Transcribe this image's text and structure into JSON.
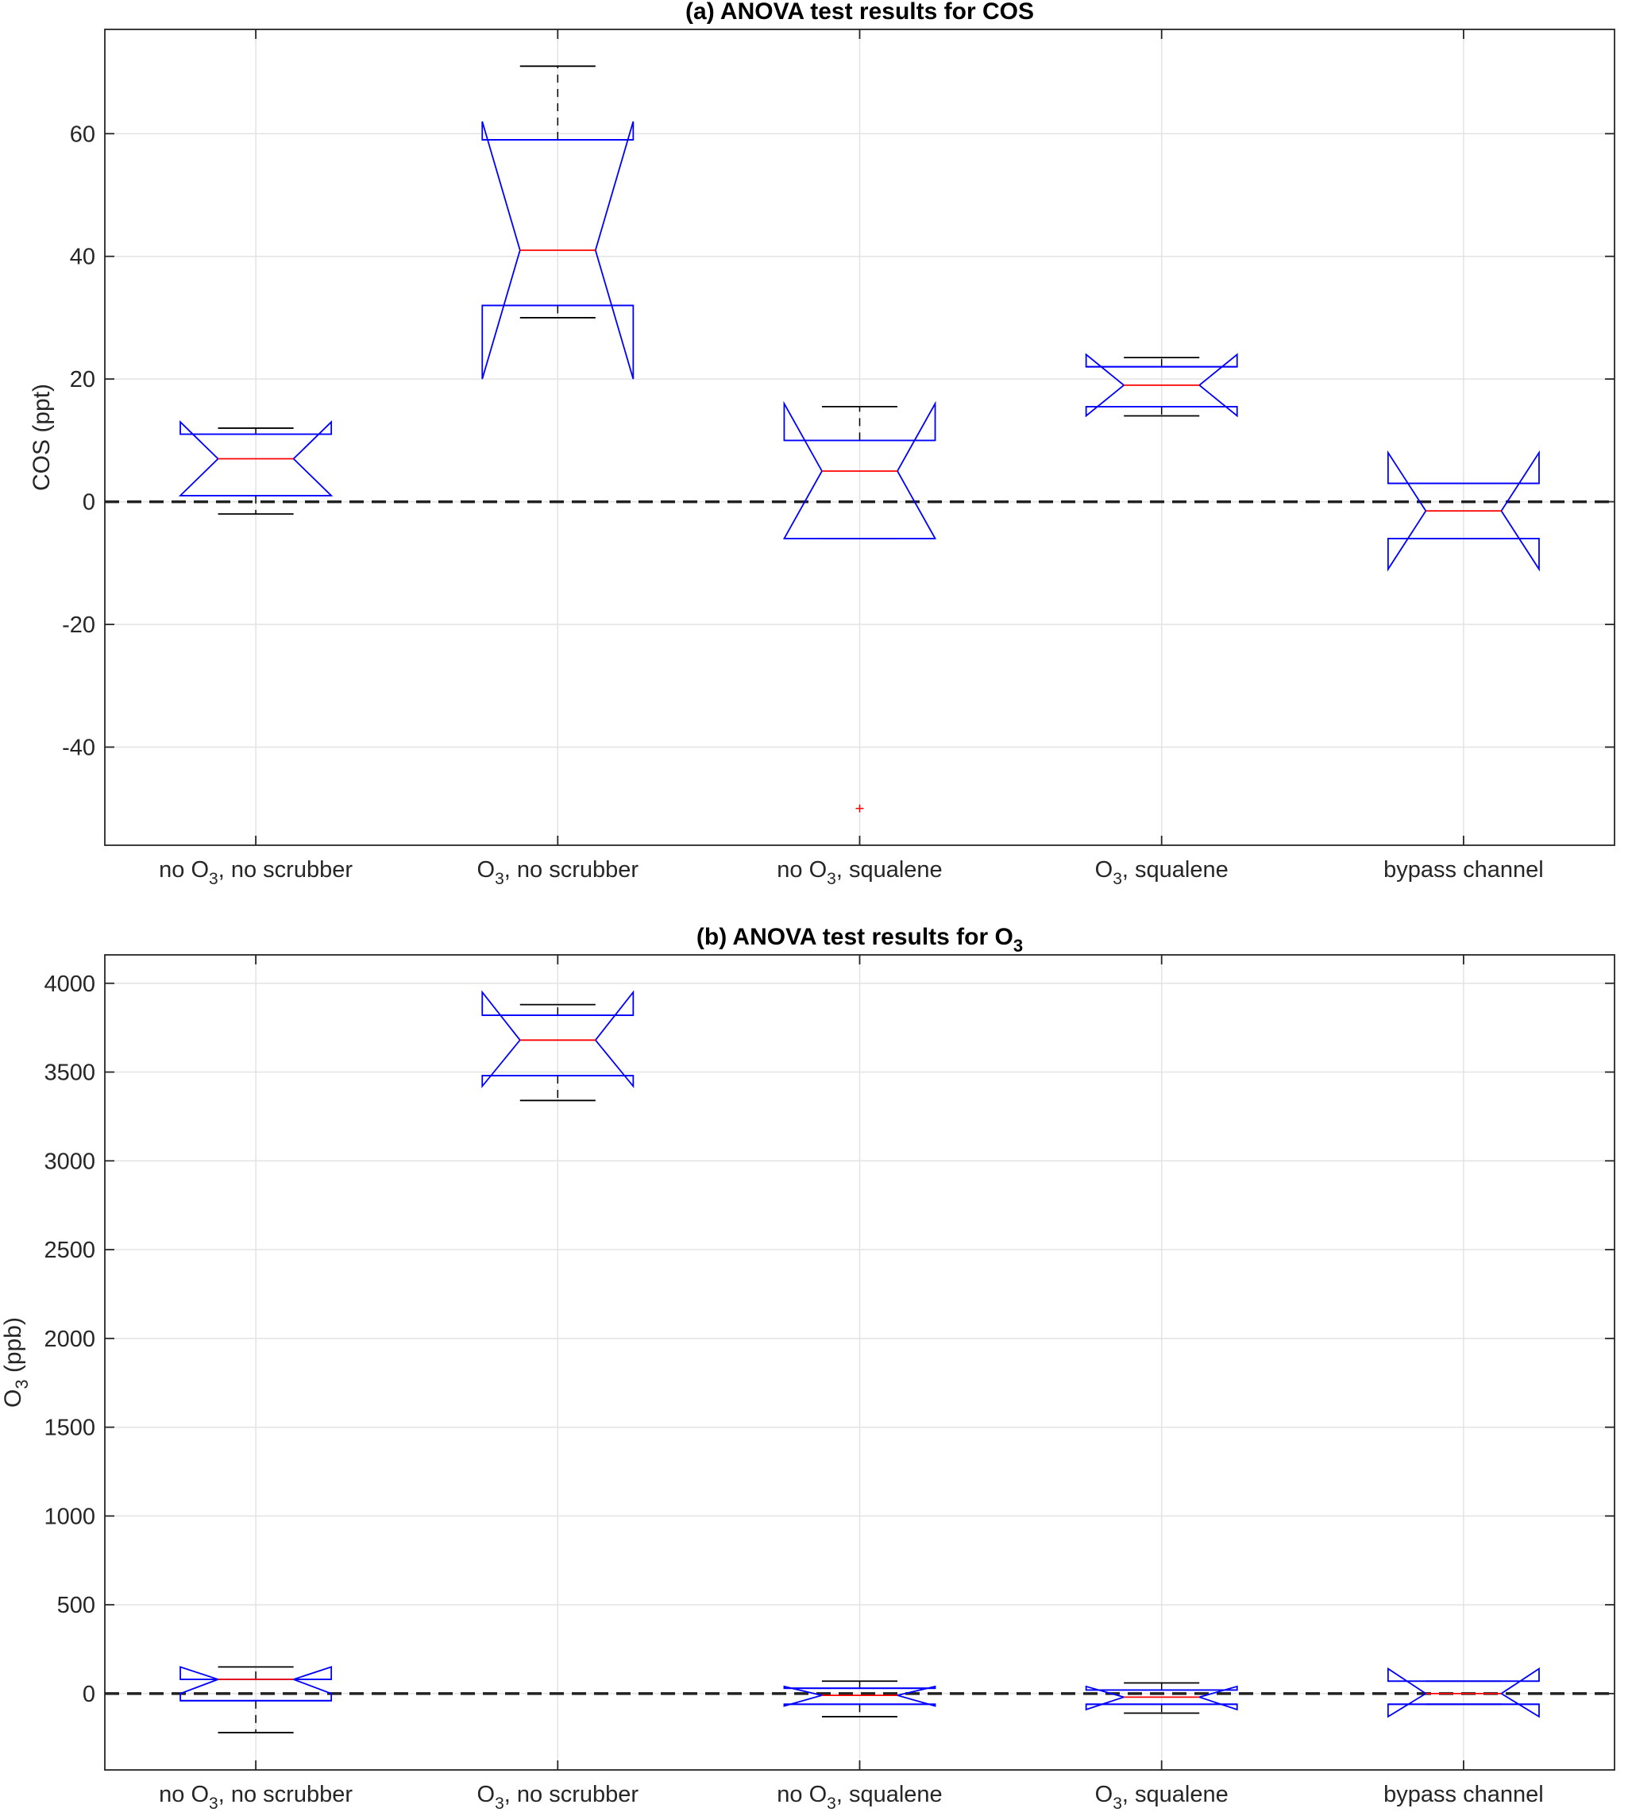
{
  "chart_data": [
    {
      "type": "boxplot",
      "title": "(a) ANOVA test results for COS",
      "ylabel": "COS (ppt)",
      "ylim": [
        -56,
        77
      ],
      "yticks": [
        -40,
        -20,
        0,
        20,
        40,
        60
      ],
      "grid": true,
      "categories": [
        {
          "pre": "no O",
          "sub": "3",
          "post": ", no scrubber"
        },
        {
          "pre": "O",
          "sub": "3",
          "post": ", no scrubber"
        },
        {
          "pre": "no O",
          "sub": "3",
          "post": ", squalene"
        },
        {
          "pre": "O",
          "sub": "3",
          "post": ", squalene"
        },
        {
          "pre": "bypass channel",
          "sub": "",
          "post": ""
        }
      ],
      "boxes": [
        {
          "whisker_low": -2,
          "q1": 1,
          "median": 7,
          "q3": 11,
          "whisker_high": 12,
          "notch_low": 1,
          "notch_high": 13,
          "outliers": []
        },
        {
          "whisker_low": 30,
          "q1": 32,
          "median": 41,
          "q3": 59,
          "whisker_high": 71,
          "notch_low": 20,
          "notch_high": 62,
          "outliers": []
        },
        {
          "whisker_low": -6,
          "q1": -6,
          "median": 5,
          "q3": 10,
          "whisker_high": 15.5,
          "notch_low": -6,
          "notch_high": 16,
          "outliers": [
            -50
          ]
        },
        {
          "whisker_low": 14,
          "q1": 15.5,
          "median": 19,
          "q3": 22,
          "whisker_high": 23.5,
          "notch_low": 14,
          "notch_high": 24,
          "outliers": []
        },
        {
          "whisker_low": -6,
          "q1": -6,
          "median": -1.5,
          "q3": 3,
          "whisker_high": 3,
          "notch_low": -11,
          "notch_high": 8,
          "outliers": []
        }
      ],
      "reference_line": 0
    },
    {
      "type": "boxplot",
      "title_pre": "(b) ANOVA test results for O",
      "title_sub": "3",
      "ylabel_pre": "O",
      "ylabel_sub": "3",
      "ylabel_post": " (ppb)",
      "ylim": [
        -430,
        4160
      ],
      "yticks": [
        0,
        500,
        1000,
        1500,
        2000,
        2500,
        3000,
        3500,
        4000
      ],
      "grid": true,
      "categories": [
        {
          "pre": "no O",
          "sub": "3",
          "post": ", no scrubber"
        },
        {
          "pre": "O",
          "sub": "3",
          "post": ", no scrubber"
        },
        {
          "pre": "no O",
          "sub": "3",
          "post": ", squalene"
        },
        {
          "pre": "O",
          "sub": "3",
          "post": ", squalene"
        },
        {
          "pre": "bypass channel",
          "sub": "",
          "post": ""
        }
      ],
      "boxes": [
        {
          "whisker_low": -220,
          "q1": -40,
          "median": 80,
          "q3": 80,
          "whisker_high": 150,
          "notch_low": 0,
          "notch_high": 150,
          "outliers": []
        },
        {
          "whisker_low": 3340,
          "q1": 3480,
          "median": 3680,
          "q3": 3820,
          "whisker_high": 3880,
          "notch_low": 3420,
          "notch_high": 3950,
          "outliers": []
        },
        {
          "whisker_low": -130,
          "q1": -60,
          "median": -10,
          "q3": 30,
          "whisker_high": 70,
          "notch_low": -70,
          "notch_high": 40,
          "outliers": []
        },
        {
          "whisker_low": -110,
          "q1": -60,
          "median": -20,
          "q3": 20,
          "whisker_high": 60,
          "notch_low": -90,
          "notch_high": 40,
          "outliers": []
        },
        {
          "whisker_low": -60,
          "q1": -60,
          "median": 0,
          "q3": 70,
          "whisker_high": 70,
          "notch_low": -130,
          "notch_high": 140,
          "outliers": []
        }
      ],
      "reference_line": 0
    }
  ],
  "colors": {
    "box": "#0000ff",
    "median": "#ff0000",
    "whisker": "#000000",
    "grid": "#e3e3e3",
    "axis": "#262626",
    "outlier": "#ff0000"
  }
}
